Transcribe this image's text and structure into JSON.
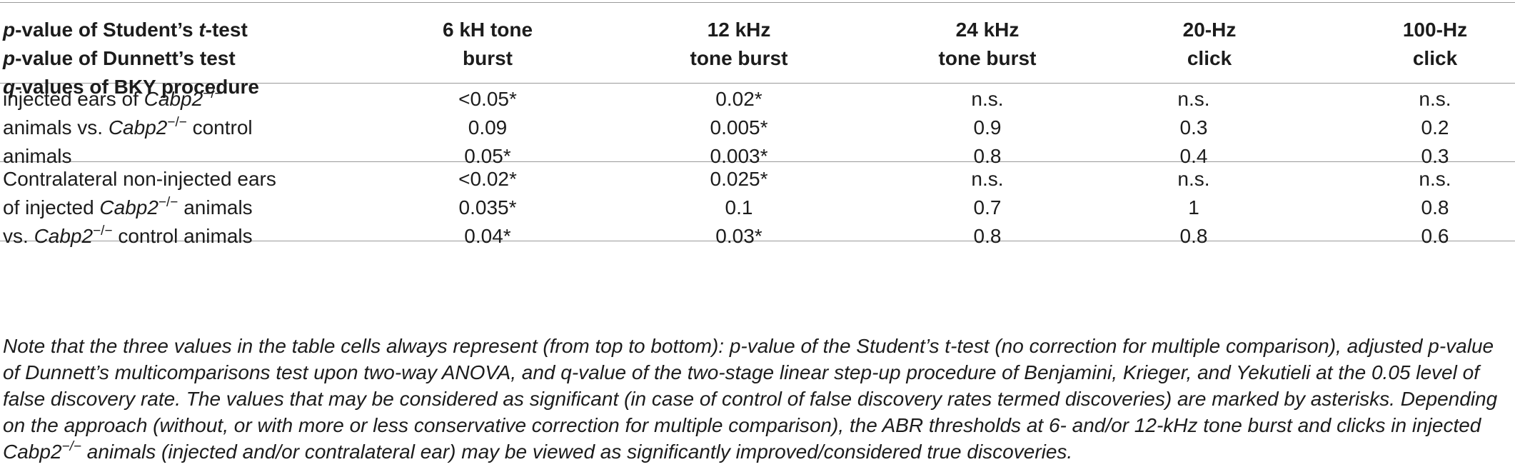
{
  "header": {
    "row_lines": [
      {
        "prefix": "p",
        "text": "-value of Student’s ",
        "italic2": "t",
        "text2": "-test"
      },
      {
        "prefix": "p",
        "text": "-value of Dunnett’s test",
        "italic2": "",
        "text2": ""
      },
      {
        "prefix": "q",
        "text": "-values of BKY procedure",
        "italic2": "",
        "text2": ""
      }
    ],
    "columns": [
      {
        "line1": "6 kH tone",
        "line2": "burst"
      },
      {
        "line1": "12 kHz",
        "line2": "tone burst"
      },
      {
        "line1": "24 kHz",
        "line2": "tone burst"
      },
      {
        "line1": "20-Hz",
        "line2": "click"
      },
      {
        "line1": "100-Hz",
        "line2": "click"
      }
    ]
  },
  "gene": "Cabp2",
  "gene_sup": "−/−",
  "rows": [
    {
      "label": {
        "l1_pre": "injected ears of ",
        "l1_post": "",
        "l2_pre": "animals vs. ",
        "l2_post": " control",
        "l3": "animals"
      },
      "values": [
        [
          "<0.05*",
          "0.09",
          "0.05*"
        ],
        [
          "0.02*",
          "0.005*",
          "0.003*"
        ],
        [
          "n.s.",
          "0.9",
          "0.8"
        ],
        [
          "n.s.",
          "0.3",
          "0.4"
        ],
        [
          "n.s.",
          "0.2",
          "0.3"
        ]
      ]
    },
    {
      "label": {
        "l1": "Contralateral non-injected ears",
        "l2_pre": "of injected ",
        "l2_post": " animals",
        "l3_pre": "vs. ",
        "l3_post": " control animals"
      },
      "values": [
        [
          "<0.02*",
          "0.035*",
          "0.04*"
        ],
        [
          "0.025*",
          "0.1",
          "0.03*"
        ],
        [
          "n.s.",
          "0.7",
          "0.8"
        ],
        [
          "n.s.",
          "1",
          "0.8"
        ],
        [
          "n.s.",
          "0.8",
          "0.6"
        ]
      ]
    }
  ],
  "note": {
    "line1": "Note that the three values in the table cells always represent (from top to bottom): p-value of the Student’s t-test (no correction for multiple comparison), adjusted p-value",
    "line2": "of Dunnett’s multicomparisons test upon two-way ANOVA, and q-value of the two-stage linear step-up procedure of Benjamini, Krieger, and Yekutieli at the 0.05 level of",
    "line3": "false discovery rate. The values that may be considered as significant (in case of control of false discovery rates termed discoveries) are marked by asterisks. Depending",
    "line4": "on the approach (without, or with more or less conservative correction for multiple comparison), the ABR thresholds at 6- and/or 12-kHz tone burst and clicks in injected",
    "line5_post": " animals (injected and/or contralateral ear) may be viewed as significantly improved/considered true discoveries."
  }
}
